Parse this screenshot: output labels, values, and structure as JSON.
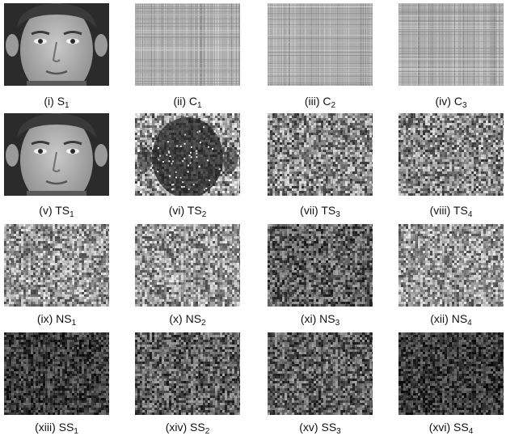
{
  "panels": [
    {
      "id": "i",
      "roman": "(i)",
      "label": "S",
      "sub": "1",
      "kind": "face-original"
    },
    {
      "id": "ii",
      "roman": "(ii)",
      "label": "C",
      "sub": "1",
      "kind": "stripes-light"
    },
    {
      "id": "iii",
      "roman": "(iii)",
      "label": "C",
      "sub": "2",
      "kind": "stripes-light"
    },
    {
      "id": "iv",
      "roman": "(iv)",
      "label": "C",
      "sub": "3",
      "kind": "stripes-light"
    },
    {
      "id": "v",
      "roman": "(v)",
      "label": "TS",
      "sub": "1",
      "kind": "face-original"
    },
    {
      "id": "vi",
      "roman": "(vi)",
      "label": "TS",
      "sub": "2",
      "kind": "face-texture"
    },
    {
      "id": "vii",
      "roman": "(vii)",
      "label": "TS",
      "sub": "3",
      "kind": "noise-mid"
    },
    {
      "id": "viii",
      "roman": "(viii)",
      "label": "TS",
      "sub": "4",
      "kind": "noise-mid"
    },
    {
      "id": "ix",
      "roman": "(ix)",
      "label": "NS",
      "sub": "1",
      "kind": "noise-light"
    },
    {
      "id": "x",
      "roman": "(x)",
      "label": "NS",
      "sub": "2",
      "kind": "noise-light"
    },
    {
      "id": "xi",
      "roman": "(xi)",
      "label": "NS",
      "sub": "3",
      "kind": "noise-dark"
    },
    {
      "id": "xii",
      "roman": "(xii)",
      "label": "NS",
      "sub": "4",
      "kind": "noise-light"
    },
    {
      "id": "xiii",
      "roman": "(xiii)",
      "label": "SS",
      "sub": "1",
      "kind": "noise-darker"
    },
    {
      "id": "xiv",
      "roman": "(xiv)",
      "label": "SS",
      "sub": "2",
      "kind": "noise-dark"
    },
    {
      "id": "xv",
      "roman": "(xv)",
      "label": "SS",
      "sub": "3",
      "kind": "noise-dark"
    },
    {
      "id": "xvi",
      "roman": "(xvi)",
      "label": "SS",
      "sub": "4",
      "kind": "noise-darker"
    }
  ]
}
